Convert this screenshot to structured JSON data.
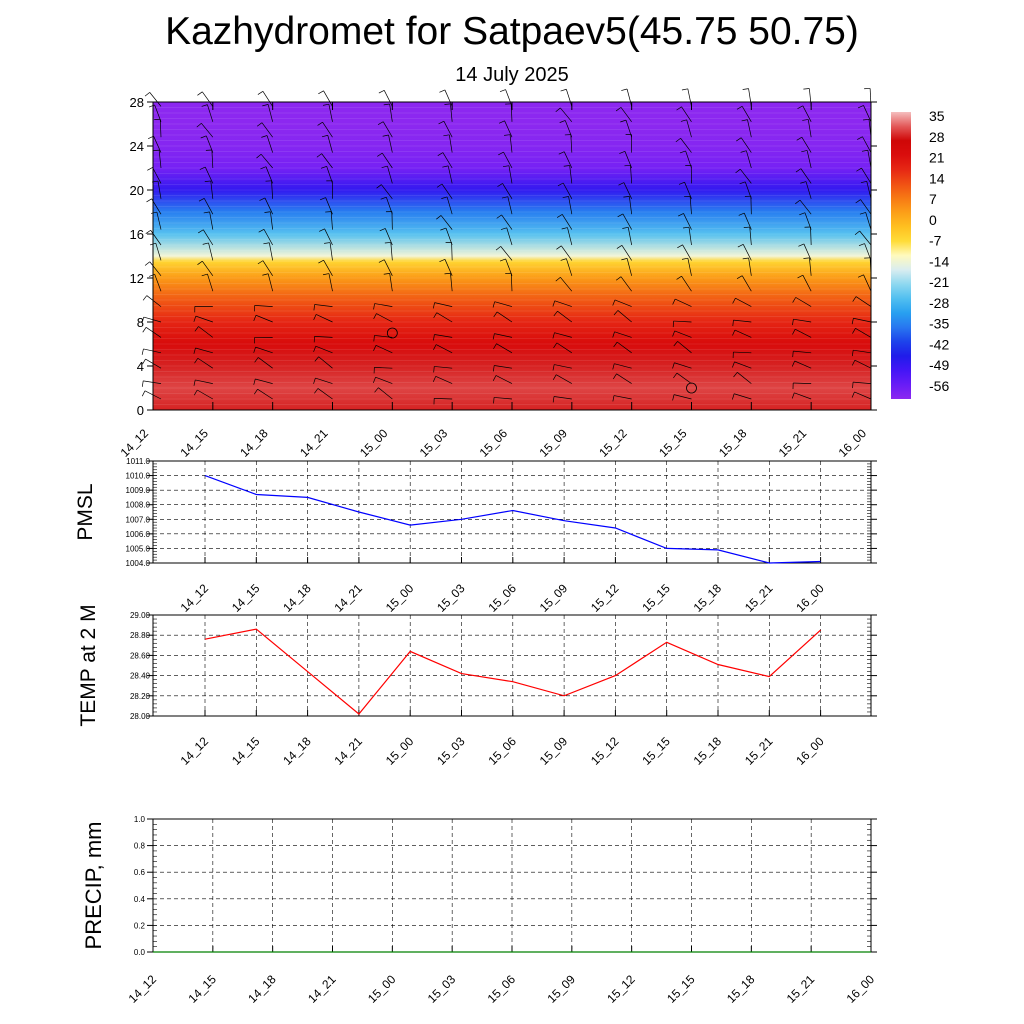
{
  "title": "Kazhydromet for Satpaev5(45.75 50.75)",
  "subtitle": "14 July 2025",
  "time_labels": [
    "14_12",
    "14_15",
    "14_18",
    "14_21",
    "15_00",
    "15_03",
    "15_06",
    "15_09",
    "15_12",
    "15_15",
    "15_18",
    "15_21",
    "16_00"
  ],
  "colors": {
    "pmsl_line": "#0000ff",
    "temp_line": "#ff0000",
    "precip_line": "#008000",
    "grid": "#000000"
  },
  "chart_data": [
    {
      "type": "heatmap",
      "name": "temperature-profile",
      "y_ticks": [
        0,
        4,
        8,
        12,
        16,
        20,
        24,
        28
      ],
      "ylim": [
        0,
        28
      ],
      "x_categories": [
        "14_12",
        "14_15",
        "14_18",
        "14_21",
        "15_00",
        "15_03",
        "15_06",
        "15_09",
        "15_12",
        "15_15",
        "15_18",
        "15_21",
        "16_00"
      ],
      "colorbar_labels": [
        35,
        28,
        21,
        14,
        7,
        0,
        -7,
        -14,
        -21,
        -28,
        -35,
        -42,
        -49,
        -56
      ],
      "level_temperature_profile": [
        {
          "level": 0,
          "value": 30
        },
        {
          "level": 2,
          "value": 32
        },
        {
          "level": 4,
          "value": 30
        },
        {
          "level": 6,
          "value": 24
        },
        {
          "level": 8,
          "value": 19
        },
        {
          "level": 10,
          "value": 13
        },
        {
          "level": 12,
          "value": 5
        },
        {
          "level": 13.5,
          "value": -4
        },
        {
          "level": 14,
          "value": -12
        },
        {
          "level": 16,
          "value": -24
        },
        {
          "level": 18,
          "value": -33
        },
        {
          "level": 20,
          "value": -46
        },
        {
          "level": 22,
          "value": -55
        },
        {
          "level": 24,
          "value": -57
        },
        {
          "level": 26,
          "value": -58
        },
        {
          "level": 28,
          "value": -58
        }
      ],
      "markers": [
        {
          "time_index": 4,
          "level": 7
        },
        {
          "time_index": 9,
          "level": 2
        }
      ]
    },
    {
      "type": "line",
      "name": "pmsl",
      "ylabel": "PMSL",
      "x": [
        "14_12",
        "14_15",
        "14_18",
        "14_21",
        "15_00",
        "15_03",
        "15_06",
        "15_09",
        "15_12",
        "15_15",
        "15_18",
        "15_21",
        "16_00"
      ],
      "series": [
        {
          "values": [
            1010.0,
            1008.7,
            1008.5,
            1007.5,
            1006.6,
            1007.0,
            1007.6,
            1006.9,
            1006.4,
            1005.0,
            1004.9,
            1004.0,
            1004.1
          ]
        }
      ],
      "ylim": [
        1004.0,
        1011.0
      ],
      "y_ticks": [
        "1004.0",
        "1005.0",
        "1006.0",
        "1007.0",
        "1008.0",
        "1009.0",
        "1010.0",
        "1011.0"
      ],
      "grid": true
    },
    {
      "type": "line",
      "name": "temp-2m",
      "ylabel": "TEMP at 2 M",
      "x": [
        "14_12",
        "14_15",
        "14_18",
        "14_21",
        "15_00",
        "15_03",
        "15_06",
        "15_09",
        "15_12",
        "15_15",
        "15_18",
        "15_21",
        "16_00"
      ],
      "series": [
        {
          "values": [
            28.76,
            28.86,
            28.44,
            28.02,
            28.64,
            28.42,
            28.34,
            28.2,
            28.4,
            28.73,
            28.51,
            28.39,
            28.85
          ]
        }
      ],
      "ylim": [
        28.0,
        29.0
      ],
      "y_ticks": [
        "28.00",
        "28.20",
        "28.40",
        "28.60",
        "28.80",
        "29.00"
      ],
      "grid": true
    },
    {
      "type": "line",
      "name": "precip",
      "ylabel": "PRECIP, mm",
      "x": [
        "14_12",
        "14_15",
        "14_18",
        "14_21",
        "15_00",
        "15_03",
        "15_06",
        "15_09",
        "15_12",
        "15_15",
        "15_18",
        "15_21",
        "16_00"
      ],
      "series": [
        {
          "values": [
            0,
            0,
            0,
            0,
            0,
            0,
            0,
            0,
            0,
            0,
            0,
            0,
            0
          ]
        }
      ],
      "ylim": [
        0,
        1.0
      ],
      "y_ticks": [
        "0.0",
        "0.2",
        "0.4",
        "0.6",
        "0.8",
        "1.0"
      ],
      "grid": true
    }
  ]
}
